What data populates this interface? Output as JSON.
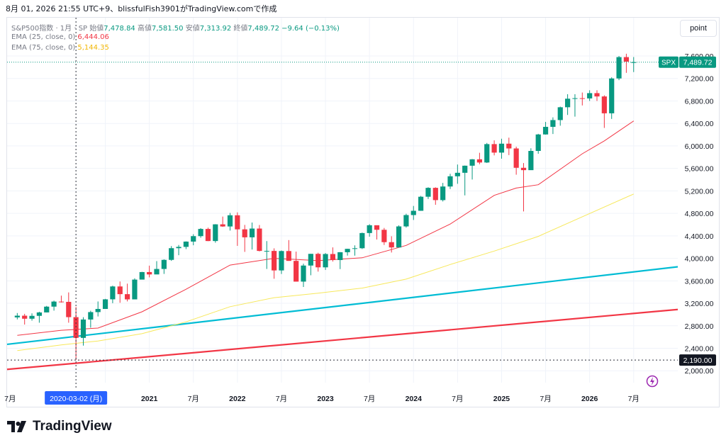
{
  "header": {
    "title_line": "8月 01, 2026 21:55 UTC+9、blissfulFish3901がTradingView.comで作成"
  },
  "legend": {
    "symbol": "S&P500指数 · 1月 · SP",
    "open_label": "始値",
    "open": "7,478.84",
    "high_label": "高値",
    "high": "7,581.50",
    "low_label": "安値",
    "low": "7,313.92",
    "close_label": "終値",
    "close": "7,489.72",
    "change": "−9.64 (−0.13%)",
    "ema25_label": "EMA (25, close, 0)",
    "ema25_value": "6,444.06",
    "ema75_label": "EMA (75, close, 0)",
    "ema75_value": "5,144.35"
  },
  "toolbar": {
    "scale_button": "point"
  },
  "price_axis": {
    "ticks": [
      "7,600.00",
      "7,200.00",
      "6,800.00",
      "6,400.00",
      "6,000.00",
      "5,600.00",
      "5,200.00",
      "4,800.00",
      "4,400.00",
      "4,000.00",
      "3,600.00",
      "3,200.00",
      "2,800.00",
      "2,400.00",
      "2,000.00"
    ],
    "last_price_symbol": "SPX",
    "last_price": "7,489.72",
    "crosshair_price": "2,190.00"
  },
  "time_axis": {
    "labels": [
      "7月",
      "2021",
      "7月",
      "2022",
      "7月",
      "2023",
      "7月",
      "2024",
      "7月",
      "2025",
      "7月",
      "2026",
      "7月"
    ],
    "crosshair_date": "2020-03-02 (月)"
  },
  "brand": {
    "name": "TradingView"
  },
  "colors": {
    "up": "#089981",
    "down": "#f23645",
    "ema25": "#f23645",
    "ema75": "#f7e85b",
    "trend_cyan": "#00bcd4",
    "trend_red": "#f23645",
    "grid": "#f0f3fa"
  },
  "chart_data": {
    "type": "candlestick",
    "interval": "1M",
    "y_range": [
      1900,
      7720
    ],
    "x_range": [
      "2019-06",
      "2026-12"
    ],
    "candles": [
      {
        "t": "2019-07",
        "o": 2950,
        "h": 3027,
        "l": 2914,
        "c": 2980
      },
      {
        "t": "2019-08",
        "o": 2980,
        "h": 3013,
        "l": 2822,
        "c": 2926
      },
      {
        "t": "2019-09",
        "o": 2926,
        "h": 3021,
        "l": 2892,
        "c": 2977
      },
      {
        "t": "2019-10",
        "o": 2977,
        "h": 3050,
        "l": 2855,
        "c": 3038
      },
      {
        "t": "2019-11",
        "o": 3038,
        "h": 3154,
        "l": 3037,
        "c": 3141
      },
      {
        "t": "2019-12",
        "o": 3141,
        "h": 3248,
        "l": 3070,
        "c": 3231
      },
      {
        "t": "2020-01",
        "o": 3231,
        "h": 3337,
        "l": 3214,
        "c": 3226
      },
      {
        "t": "2020-02",
        "o": 3226,
        "h": 3394,
        "l": 2855,
        "c": 2954
      },
      {
        "t": "2020-03",
        "o": 2954,
        "h": 3136,
        "l": 2192,
        "c": 2585
      },
      {
        "t": "2020-04",
        "o": 2585,
        "h": 2954,
        "l": 2447,
        "c": 2912
      },
      {
        "t": "2020-05",
        "o": 2912,
        "h": 3068,
        "l": 2767,
        "c": 3044
      },
      {
        "t": "2020-06",
        "o": 3044,
        "h": 3233,
        "l": 2966,
        "c": 3100
      },
      {
        "t": "2020-07",
        "o": 3100,
        "h": 3279,
        "l": 3102,
        "c": 3271
      },
      {
        "t": "2020-08",
        "o": 3271,
        "h": 3514,
        "l": 3202,
        "c": 3500
      },
      {
        "t": "2020-09",
        "o": 3500,
        "h": 3588,
        "l": 3210,
        "c": 3363
      },
      {
        "t": "2020-10",
        "o": 3363,
        "h": 3550,
        "l": 3234,
        "c": 3270
      },
      {
        "t": "2020-11",
        "o": 3270,
        "h": 3645,
        "l": 3280,
        "c": 3622
      },
      {
        "t": "2020-12",
        "o": 3622,
        "h": 3760,
        "l": 3633,
        "c": 3756
      },
      {
        "t": "2021-01",
        "o": 3756,
        "h": 3870,
        "l": 3662,
        "c": 3714
      },
      {
        "t": "2021-02",
        "o": 3714,
        "h": 3950,
        "l": 3725,
        "c": 3811
      },
      {
        "t": "2021-03",
        "o": 3811,
        "h": 3983,
        "l": 3723,
        "c": 3973
      },
      {
        "t": "2021-04",
        "o": 3973,
        "h": 4218,
        "l": 3955,
        "c": 4181
      },
      {
        "t": "2021-05",
        "o": 4181,
        "h": 4238,
        "l": 4056,
        "c": 4204
      },
      {
        "t": "2021-06",
        "o": 4204,
        "h": 4302,
        "l": 4164,
        "c": 4298
      },
      {
        "t": "2021-07",
        "o": 4298,
        "h": 4429,
        "l": 4233,
        "c": 4395
      },
      {
        "t": "2021-08",
        "o": 4395,
        "h": 4537,
        "l": 4367,
        "c": 4523
      },
      {
        "t": "2021-09",
        "o": 4523,
        "h": 4546,
        "l": 4306,
        "c": 4308
      },
      {
        "t": "2021-10",
        "o": 4308,
        "h": 4608,
        "l": 4279,
        "c": 4605
      },
      {
        "t": "2021-11",
        "o": 4605,
        "h": 4743,
        "l": 4560,
        "c": 4567
      },
      {
        "t": "2021-12",
        "o": 4567,
        "h": 4808,
        "l": 4495,
        "c": 4766
      },
      {
        "t": "2022-01",
        "o": 4766,
        "h": 4818,
        "l": 4222,
        "c": 4516
      },
      {
        "t": "2022-02",
        "o": 4516,
        "h": 4595,
        "l": 4115,
        "c": 4374
      },
      {
        "t": "2022-03",
        "o": 4374,
        "h": 4637,
        "l": 4157,
        "c": 4530
      },
      {
        "t": "2022-04",
        "o": 4530,
        "h": 4593,
        "l": 4124,
        "c": 4132
      },
      {
        "t": "2022-05",
        "o": 4132,
        "h": 4307,
        "l": 3811,
        "c": 4132
      },
      {
        "t": "2022-06",
        "o": 4132,
        "h": 4178,
        "l": 3637,
        "c": 3785
      },
      {
        "t": "2022-07",
        "o": 3785,
        "h": 4140,
        "l": 3722,
        "c": 4130
      },
      {
        "t": "2022-08",
        "o": 4130,
        "h": 4325,
        "l": 3955,
        "c": 3955
      },
      {
        "t": "2022-09",
        "o": 3955,
        "h": 4120,
        "l": 3585,
        "c": 3586
      },
      {
        "t": "2022-10",
        "o": 3586,
        "h": 3905,
        "l": 3491,
        "c": 3872
      },
      {
        "t": "2022-11",
        "o": 3872,
        "h": 4080,
        "l": 3699,
        "c": 4080
      },
      {
        "t": "2022-12",
        "o": 4080,
        "h": 4100,
        "l": 3764,
        "c": 3840
      },
      {
        "t": "2023-01",
        "o": 3840,
        "h": 4094,
        "l": 3794,
        "c": 4077
      },
      {
        "t": "2023-02",
        "o": 4077,
        "h": 4195,
        "l": 3943,
        "c": 3970
      },
      {
        "t": "2023-03",
        "o": 3970,
        "h": 4111,
        "l": 3809,
        "c": 4109
      },
      {
        "t": "2023-04",
        "o": 4109,
        "h": 4170,
        "l": 4049,
        "c": 4169
      },
      {
        "t": "2023-05",
        "o": 4169,
        "h": 4231,
        "l": 4048,
        "c": 4180
      },
      {
        "t": "2023-06",
        "o": 4180,
        "h": 4458,
        "l": 4166,
        "c": 4450
      },
      {
        "t": "2023-07",
        "o": 4450,
        "h": 4607,
        "l": 4385,
        "c": 4589
      },
      {
        "t": "2023-08",
        "o": 4589,
        "h": 4584,
        "l": 4335,
        "c": 4508
      },
      {
        "t": "2023-09",
        "o": 4508,
        "h": 4541,
        "l": 4238,
        "c": 4288
      },
      {
        "t": "2023-10",
        "o": 4288,
        "h": 4393,
        "l": 4104,
        "c": 4194
      },
      {
        "t": "2023-11",
        "o": 4194,
        "h": 4587,
        "l": 4201,
        "c": 4568
      },
      {
        "t": "2023-12",
        "o": 4568,
        "h": 4793,
        "l": 4547,
        "c": 4770
      },
      {
        "t": "2024-01",
        "o": 4770,
        "h": 4932,
        "l": 4683,
        "c": 4846
      },
      {
        "t": "2024-02",
        "o": 4846,
        "h": 5111,
        "l": 4845,
        "c": 5096
      },
      {
        "t": "2024-03",
        "o": 5096,
        "h": 5265,
        "l": 5056,
        "c": 5254
      },
      {
        "t": "2024-04",
        "o": 5254,
        "h": 5264,
        "l": 4953,
        "c": 5036
      },
      {
        "t": "2024-05",
        "o": 5036,
        "h": 5342,
        "l": 5012,
        "c": 5278
      },
      {
        "t": "2024-06",
        "o": 5278,
        "h": 5505,
        "l": 5234,
        "c": 5460
      },
      {
        "t": "2024-07",
        "o": 5460,
        "h": 5669,
        "l": 5326,
        "c": 5522
      },
      {
        "t": "2024-08",
        "o": 5522,
        "h": 5651,
        "l": 5120,
        "c": 5648
      },
      {
        "t": "2024-09",
        "o": 5648,
        "h": 5767,
        "l": 5402,
        "c": 5762
      },
      {
        "t": "2024-10",
        "o": 5762,
        "h": 5878,
        "l": 5674,
        "c": 5705
      },
      {
        "t": "2024-11",
        "o": 5705,
        "h": 6053,
        "l": 5696,
        "c": 6032
      },
      {
        "t": "2024-12",
        "o": 6032,
        "h": 6099,
        "l": 5832,
        "c": 5881
      },
      {
        "t": "2025-01",
        "o": 5881,
        "h": 6128,
        "l": 5773,
        "c": 6040
      },
      {
        "t": "2025-02",
        "o": 6040,
        "h": 6147,
        "l": 5837,
        "c": 5955
      },
      {
        "t": "2025-03",
        "o": 5955,
        "h": 5987,
        "l": 5488,
        "c": 5611
      },
      {
        "t": "2025-04",
        "o": 5611,
        "h": 5695,
        "l": 4835,
        "c": 5569
      },
      {
        "t": "2025-05",
        "o": 5569,
        "h": 5958,
        "l": 5578,
        "c": 5911
      },
      {
        "t": "2025-06",
        "o": 5911,
        "h": 6215,
        "l": 5861,
        "c": 6204
      },
      {
        "t": "2025-07",
        "o": 6204,
        "h": 6427,
        "l": 6201,
        "c": 6339
      },
      {
        "t": "2025-08",
        "o": 6339,
        "h": 6508,
        "l": 6212,
        "c": 6460
      },
      {
        "t": "2025-09",
        "o": 6460,
        "h": 6699,
        "l": 6360,
        "c": 6688
      },
      {
        "t": "2025-10",
        "o": 6688,
        "h": 6920,
        "l": 6551,
        "c": 6840
      },
      {
        "t": "2025-11",
        "o": 6840,
        "h": 6920,
        "l": 6521,
        "c": 6849
      },
      {
        "t": "2025-12",
        "o": 6849,
        "h": 6950,
        "l": 6720,
        "c": 6845
      },
      {
        "t": "2026-01",
        "o": 6845,
        "h": 6990,
        "l": 6800,
        "c": 6939
      },
      {
        "t": "2026-02",
        "o": 6939,
        "h": 6990,
        "l": 6800,
        "c": 6880
      },
      {
        "t": "2026-03",
        "o": 6880,
        "h": 6900,
        "l": 6320,
        "c": 6580
      },
      {
        "t": "2026-04",
        "o": 6580,
        "h": 7220,
        "l": 6480,
        "c": 7200
      },
      {
        "t": "2026-05",
        "o": 7200,
        "h": 7600,
        "l": 7170,
        "c": 7580
      },
      {
        "t": "2026-06",
        "o": 7580,
        "h": 7640,
        "l": 7300,
        "c": 7499
      },
      {
        "t": "2026-07",
        "o": 7478.84,
        "h": 7581.5,
        "l": 7313.92,
        "c": 7489.72
      }
    ],
    "ema25": [
      [
        "2019-07",
        2630
      ],
      [
        "2020-01",
        2720
      ],
      [
        "2020-06",
        2760
      ],
      [
        "2020-12",
        3050
      ],
      [
        "2021-06",
        3450
      ],
      [
        "2021-12",
        3880
      ],
      [
        "2022-06",
        4000
      ],
      [
        "2022-12",
        3960
      ],
      [
        "2023-06",
        4010
      ],
      [
        "2023-12",
        4230
      ],
      [
        "2024-06",
        4610
      ],
      [
        "2024-12",
        5120
      ],
      [
        "2025-03",
        5250
      ],
      [
        "2025-06",
        5310
      ],
      [
        "2025-12",
        5860
      ],
      [
        "2026-03",
        6090
      ],
      [
        "2026-07",
        6444.06
      ]
    ],
    "ema75": [
      [
        "2019-07",
        2360
      ],
      [
        "2020-01",
        2460
      ],
      [
        "2020-06",
        2530
      ],
      [
        "2020-12",
        2660
      ],
      [
        "2021-06",
        2870
      ],
      [
        "2021-12",
        3140
      ],
      [
        "2022-06",
        3300
      ],
      [
        "2022-12",
        3380
      ],
      [
        "2023-06",
        3470
      ],
      [
        "2023-12",
        3630
      ],
      [
        "2024-06",
        3890
      ],
      [
        "2024-12",
        4130
      ],
      [
        "2025-06",
        4390
      ],
      [
        "2025-12",
        4740
      ],
      [
        "2026-07",
        5144.35
      ]
    ],
    "trendlines": [
      {
        "name": "cyan",
        "from": [
          "2019-06",
          2470
        ],
        "to": [
          "2026-12",
          3850
        ]
      },
      {
        "name": "red",
        "from": [
          "2019-06",
          2025
        ],
        "to": [
          "2026-12",
          3090
        ]
      }
    ],
    "crosshair": {
      "t": "2020-03",
      "price": 2190
    }
  }
}
